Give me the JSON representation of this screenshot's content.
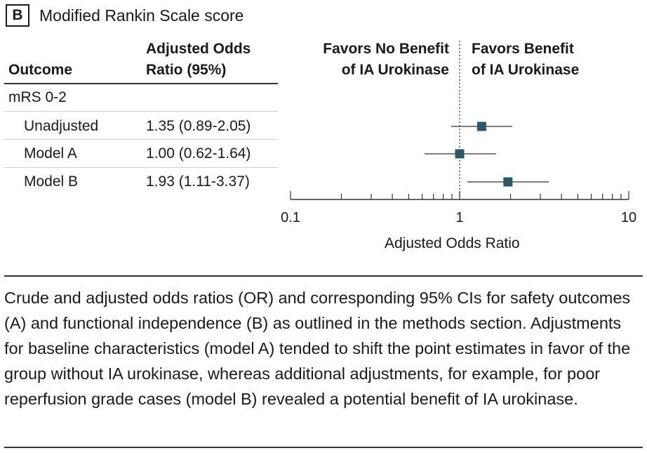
{
  "panel": {
    "label": "B",
    "title": "Modified Rankin Scale score"
  },
  "table": {
    "col_outcome": "Outcome",
    "col_or_line1": "Adjusted Odds",
    "col_or_line2": "Ratio (95%)",
    "group": "mRS 0-2",
    "rows": [
      {
        "label": "Unadjusted",
        "value": "1.35 (0.89-2.05)"
      },
      {
        "label": "Model A",
        "value": "1.00 (0.62-1.64)"
      },
      {
        "label": "Model B",
        "value": "1.93 (1.11-3.37)"
      }
    ]
  },
  "favors": {
    "left_line1": "Favors No Benefit",
    "left_line2": "of IA Urokinase",
    "right_line1": "Favors Benefit",
    "right_line2": "of IA Urokinase"
  },
  "chart_data": {
    "type": "forest",
    "xscale": "log",
    "xlim": [
      0.1,
      10
    ],
    "xticks": [
      0.1,
      1,
      10
    ],
    "xtick_labels": [
      "0.1",
      "1",
      "10"
    ],
    "xlabel": "Adjusted Odds Ratio",
    "reference_line": 1,
    "marker_color": "#2e5563",
    "points": [
      {
        "label": "Unadjusted",
        "or": 1.35,
        "lo": 0.89,
        "hi": 2.05
      },
      {
        "label": "Model A",
        "or": 1.0,
        "lo": 0.62,
        "hi": 1.64
      },
      {
        "label": "Model B",
        "or": 1.93,
        "lo": 1.11,
        "hi": 3.37
      }
    ]
  },
  "caption": "Crude and adjusted odds ratios (OR) and corresponding 95% CIs for safety outcomes (A) and functional independence (B) as outlined in the methods section. Adjustments for baseline characteristics (model A) tended to shift the point estimates in favor of the group without IA urokinase, whereas additional adjustments, for example, for poor reperfusion grade cases (model B) revealed a potential benefit of IA urokinase."
}
